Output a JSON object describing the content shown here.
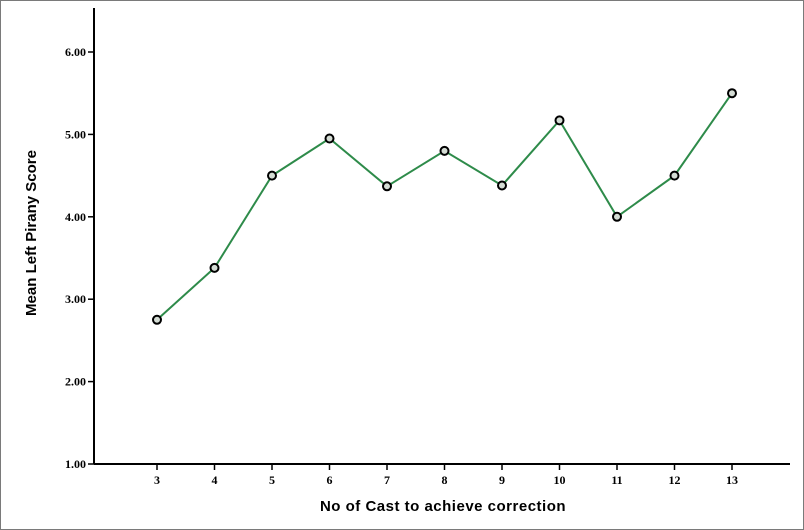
{
  "chart_data": {
    "type": "line",
    "title": "",
    "xlabel": "No of Cast to achieve correction",
    "ylabel": "Mean Left Pirany Score",
    "x": [
      3,
      4,
      5,
      6,
      7,
      8,
      9,
      10,
      11,
      12,
      13
    ],
    "x_tick_labels": [
      "3",
      "4",
      "5",
      "6",
      "7",
      "8",
      "9",
      "10",
      "11",
      "12",
      "13"
    ],
    "y_ticks": [
      1,
      2,
      3,
      4,
      5,
      6
    ],
    "y_tick_labels": [
      "1.00",
      "2.00",
      "3.00",
      "4.00",
      "5.00",
      "6.00"
    ],
    "ylim": [
      1,
      6.5
    ],
    "series": [
      {
        "values": [
          2.75,
          3.38,
          4.5,
          4.95,
          4.37,
          4.8,
          4.38,
          5.17,
          4.0,
          4.5,
          5.5
        ]
      }
    ],
    "grid": false,
    "colors": {
      "line": "#2e8b4a",
      "marker_fill": "#d4dcd4",
      "marker_edge": "#000000"
    }
  }
}
